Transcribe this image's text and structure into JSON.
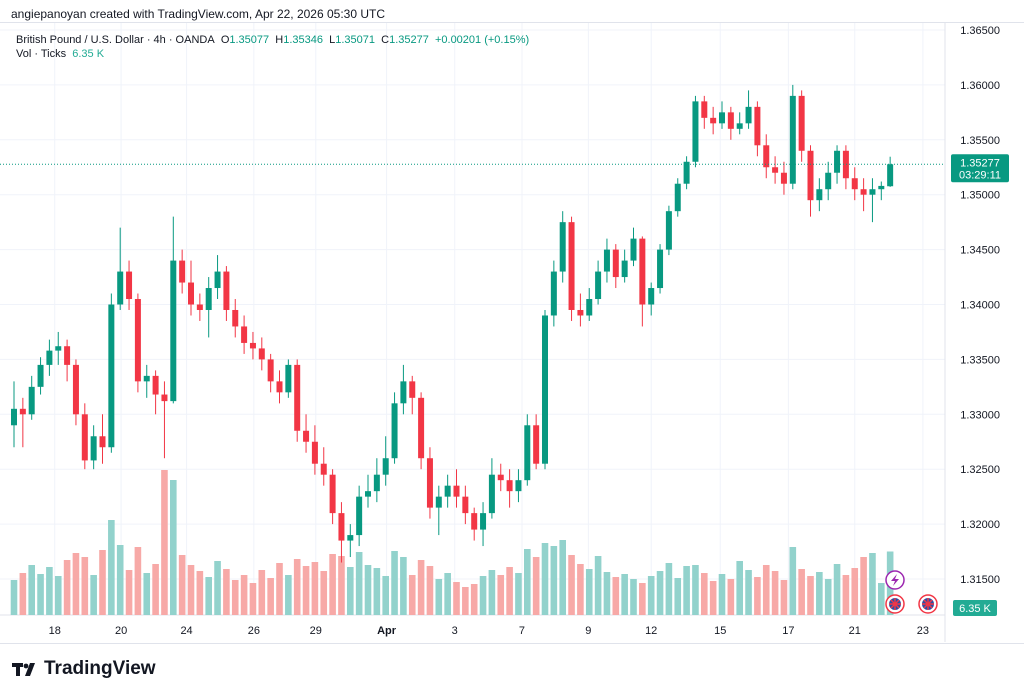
{
  "credit": "angiepanoyan created with TradingView.com, Apr 22, 2026 05:30 UTC",
  "legend": {
    "symbol": "British Pound / U.S. Dollar · 4h · OANDA",
    "o_label": "O",
    "o": "1.35077",
    "h_label": "H",
    "h": "1.35346",
    "l_label": "L",
    "l": "1.35071",
    "c_label": "C",
    "c": "1.35277",
    "change": "+0.00201 (+0.15%)",
    "vol_label": "Vol · Ticks",
    "vol_value": "6.35 K"
  },
  "logo_text": "TradingView",
  "colors": {
    "up": "#089981",
    "down": "#F23645",
    "vol_up": "#92d2cc",
    "vol_down": "#f7a9a7",
    "grid": "#f0f3fa"
  },
  "chart_data": {
    "type": "candlestick",
    "interval": "4h",
    "ylim": [
      1.3125,
      1.3675
    ],
    "y_ticks": [
      "1.36500",
      "1.36000",
      "1.35500",
      "1.35000",
      "1.34500",
      "1.34000",
      "1.33500",
      "1.33000",
      "1.32500",
      "1.32000",
      "1.31500"
    ],
    "x_ticks": [
      {
        "label": "18",
        "index": 4.6
      },
      {
        "label": "20",
        "index": 12.1
      },
      {
        "label": "24",
        "index": 19.5
      },
      {
        "label": "26",
        "index": 27.1
      },
      {
        "label": "29",
        "index": 34.1
      },
      {
        "label": "Apr",
        "index": 42.1
      },
      {
        "label": "3",
        "index": 49.8
      },
      {
        "label": "7",
        "index": 57.4
      },
      {
        "label": "9",
        "index": 64.9
      },
      {
        "label": "12",
        "index": 72
      },
      {
        "label": "15",
        "index": 79.8
      },
      {
        "label": "17",
        "index": 87.5
      },
      {
        "label": "21",
        "index": 95
      },
      {
        "label": "23",
        "index": 102.7
      }
    ],
    "last_price": "1.35277",
    "last_price_value": 1.35277,
    "countdown": "03:29:11",
    "volume_label": "6.35 K",
    "volume_unit": "K ticks",
    "candles_ohlcv": [
      [
        1.329,
        1.333,
        1.327,
        1.3305,
        3.5
      ],
      [
        1.3305,
        1.3315,
        1.327,
        1.33,
        4.2
      ],
      [
        1.33,
        1.3335,
        1.3295,
        1.3325,
        5.0
      ],
      [
        1.3325,
        1.3352,
        1.3318,
        1.3345,
        4.1
      ],
      [
        1.3345,
        1.3368,
        1.3335,
        1.3358,
        4.8
      ],
      [
        1.3358,
        1.3375,
        1.3345,
        1.3362,
        3.9
      ],
      [
        1.3362,
        1.3368,
        1.333,
        1.3345,
        5.5
      ],
      [
        1.3345,
        1.335,
        1.329,
        1.33,
        6.2
      ],
      [
        1.33,
        1.331,
        1.325,
        1.3258,
        5.8
      ],
      [
        1.3258,
        1.329,
        1.325,
        1.328,
        4.0
      ],
      [
        1.328,
        1.33,
        1.3255,
        1.327,
        6.5
      ],
      [
        1.327,
        1.341,
        1.3265,
        1.34,
        9.5
      ],
      [
        1.34,
        1.347,
        1.3395,
        1.343,
        7.0
      ],
      [
        1.343,
        1.344,
        1.3395,
        1.3405,
        4.5
      ],
      [
        1.3405,
        1.341,
        1.332,
        1.333,
        6.8
      ],
      [
        1.333,
        1.3345,
        1.3315,
        1.3335,
        4.2
      ],
      [
        1.3335,
        1.334,
        1.33,
        1.3318,
        5.1
      ],
      [
        1.3318,
        1.333,
        1.326,
        1.3312,
        14.5
      ],
      [
        1.3312,
        1.348,
        1.331,
        1.344,
        13.5
      ],
      [
        1.344,
        1.345,
        1.341,
        1.342,
        6.0
      ],
      [
        1.342,
        1.344,
        1.339,
        1.34,
        5.0
      ],
      [
        1.34,
        1.341,
        1.3385,
        1.3395,
        4.4
      ],
      [
        1.3395,
        1.3425,
        1.337,
        1.3415,
        3.8
      ],
      [
        1.3415,
        1.3445,
        1.3405,
        1.343,
        5.4
      ],
      [
        1.343,
        1.3435,
        1.3385,
        1.3395,
        4.6
      ],
      [
        1.3395,
        1.3405,
        1.337,
        1.338,
        3.5
      ],
      [
        1.338,
        1.339,
        1.3355,
        1.3365,
        4.0
      ],
      [
        1.3365,
        1.3375,
        1.335,
        1.336,
        3.2
      ],
      [
        1.336,
        1.337,
        1.334,
        1.335,
        4.5
      ],
      [
        1.335,
        1.3355,
        1.332,
        1.333,
        3.7
      ],
      [
        1.333,
        1.334,
        1.331,
        1.332,
        5.2
      ],
      [
        1.332,
        1.335,
        1.3315,
        1.3345,
        4.0
      ],
      [
        1.3345,
        1.335,
        1.3275,
        1.3285,
        5.6
      ],
      [
        1.3285,
        1.33,
        1.3265,
        1.3275,
        4.9
      ],
      [
        1.3275,
        1.329,
        1.3245,
        1.3255,
        5.3
      ],
      [
        1.3255,
        1.327,
        1.3235,
        1.3245,
        4.4
      ],
      [
        1.3245,
        1.325,
        1.32,
        1.321,
        6.1
      ],
      [
        1.321,
        1.322,
        1.3165,
        1.3185,
        5.9
      ],
      [
        1.3185,
        1.32,
        1.317,
        1.319,
        4.8
      ],
      [
        1.319,
        1.3235,
        1.318,
        1.3225,
        6.3
      ],
      [
        1.3225,
        1.3245,
        1.3215,
        1.323,
        5.0
      ],
      [
        1.323,
        1.326,
        1.322,
        1.3245,
        4.7
      ],
      [
        1.3245,
        1.328,
        1.3235,
        1.326,
        3.9
      ],
      [
        1.326,
        1.332,
        1.3255,
        1.331,
        6.4
      ],
      [
        1.331,
        1.3345,
        1.33,
        1.333,
        5.8
      ],
      [
        1.333,
        1.3335,
        1.33,
        1.3315,
        4.0
      ],
      [
        1.3315,
        1.332,
        1.325,
        1.326,
        5.5
      ],
      [
        1.326,
        1.327,
        1.3205,
        1.3215,
        4.9
      ],
      [
        1.3215,
        1.3235,
        1.319,
        1.3225,
        3.6
      ],
      [
        1.3225,
        1.3245,
        1.3215,
        1.3235,
        4.2
      ],
      [
        1.3235,
        1.325,
        1.3215,
        1.3225,
        3.3
      ],
      [
        1.3225,
        1.3235,
        1.32,
        1.321,
        2.8
      ],
      [
        1.321,
        1.3215,
        1.3185,
        1.3195,
        3.1
      ],
      [
        1.3195,
        1.322,
        1.318,
        1.321,
        3.9
      ],
      [
        1.321,
        1.326,
        1.3205,
        1.3245,
        4.5
      ],
      [
        1.3245,
        1.3255,
        1.323,
        1.324,
        4.0
      ],
      [
        1.324,
        1.325,
        1.3215,
        1.323,
        4.8
      ],
      [
        1.323,
        1.325,
        1.322,
        1.324,
        4.2
      ],
      [
        1.324,
        1.33,
        1.3235,
        1.329,
        6.6
      ],
      [
        1.329,
        1.33,
        1.325,
        1.3255,
        5.8
      ],
      [
        1.3255,
        1.3395,
        1.325,
        1.339,
        7.2
      ],
      [
        1.339,
        1.344,
        1.338,
        1.343,
        6.9
      ],
      [
        1.343,
        1.3485,
        1.342,
        1.3475,
        7.5
      ],
      [
        1.3475,
        1.348,
        1.3385,
        1.3395,
        6.0
      ],
      [
        1.3395,
        1.341,
        1.338,
        1.339,
        5.1
      ],
      [
        1.339,
        1.3415,
        1.3385,
        1.3405,
        4.6
      ],
      [
        1.3405,
        1.344,
        1.34,
        1.343,
        5.9
      ],
      [
        1.343,
        1.346,
        1.342,
        1.345,
        4.3
      ],
      [
        1.345,
        1.3455,
        1.3415,
        1.3425,
        3.8
      ],
      [
        1.3425,
        1.345,
        1.342,
        1.344,
        4.1
      ],
      [
        1.344,
        1.347,
        1.3435,
        1.346,
        3.6
      ],
      [
        1.346,
        1.3462,
        1.338,
        1.34,
        3.2
      ],
      [
        1.34,
        1.342,
        1.339,
        1.3415,
        3.9
      ],
      [
        1.3415,
        1.3455,
        1.341,
        1.345,
        4.4
      ],
      [
        1.345,
        1.349,
        1.3445,
        1.3485,
        5.2
      ],
      [
        1.3485,
        1.3515,
        1.348,
        1.351,
        3.7
      ],
      [
        1.351,
        1.3535,
        1.3505,
        1.353,
        4.9
      ],
      [
        1.353,
        1.359,
        1.3525,
        1.3585,
        5.0
      ],
      [
        1.3585,
        1.359,
        1.356,
        1.357,
        4.2
      ],
      [
        1.357,
        1.358,
        1.3555,
        1.3565,
        3.4
      ],
      [
        1.3565,
        1.3585,
        1.356,
        1.3575,
        4.1
      ],
      [
        1.3575,
        1.358,
        1.355,
        1.356,
        3.6
      ],
      [
        1.356,
        1.3575,
        1.3555,
        1.3565,
        5.4
      ],
      [
        1.3565,
        1.3595,
        1.356,
        1.358,
        4.5
      ],
      [
        1.358,
        1.3585,
        1.3535,
        1.3545,
        3.8
      ],
      [
        1.3545,
        1.3555,
        1.3515,
        1.3525,
        5.0
      ],
      [
        1.3525,
        1.3535,
        1.351,
        1.352,
        4.4
      ],
      [
        1.352,
        1.353,
        1.35,
        1.351,
        3.5
      ],
      [
        1.351,
        1.36,
        1.3505,
        1.359,
        6.8
      ],
      [
        1.359,
        1.3595,
        1.353,
        1.354,
        4.6
      ],
      [
        1.354,
        1.3545,
        1.348,
        1.3495,
        3.9
      ],
      [
        1.3495,
        1.3515,
        1.3485,
        1.3505,
        4.3
      ],
      [
        1.3505,
        1.353,
        1.3495,
        1.352,
        3.6
      ],
      [
        1.352,
        1.3545,
        1.351,
        1.354,
        5.1
      ],
      [
        1.354,
        1.3545,
        1.3505,
        1.3515,
        4.0
      ],
      [
        1.3515,
        1.3525,
        1.3495,
        1.3505,
        4.7
      ],
      [
        1.3505,
        1.3515,
        1.3485,
        1.35,
        5.8
      ],
      [
        1.35,
        1.3515,
        1.3475,
        1.3505,
        6.2
      ],
      [
        1.3505,
        1.3512,
        1.3495,
        1.3508,
        3.2
      ],
      [
        1.35077,
        1.35346,
        1.35071,
        1.35277,
        6.35
      ]
    ]
  }
}
